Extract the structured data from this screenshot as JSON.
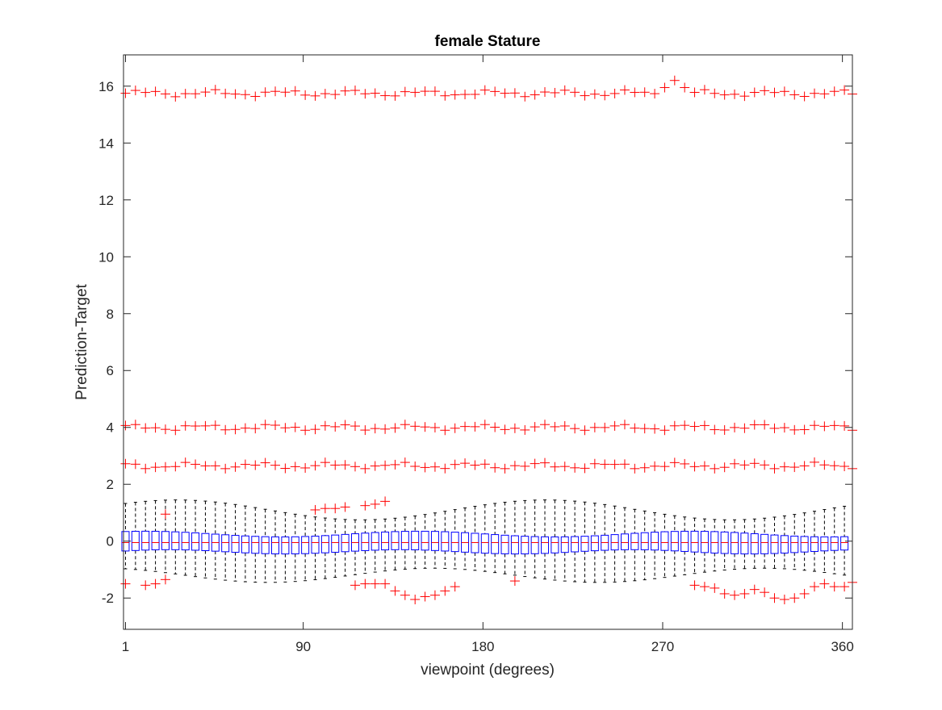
{
  "chart_data": {
    "type": "box",
    "title": "female Stature",
    "xlabel": "viewpoint (degrees)",
    "ylabel": "Prediction-Target",
    "xlim": [
      0,
      365
    ],
    "ylim": [
      -3.1,
      17.1
    ],
    "xticks": [
      1,
      90,
      180,
      270,
      360
    ],
    "yticks": [
      -2,
      0,
      2,
      4,
      6,
      8,
      10,
      12,
      14,
      16
    ],
    "grid": false,
    "viewpoint_step_degrees": 5,
    "viewpoint_count": 73,
    "box_color": "#0000FF",
    "median_color": "#FF0000",
    "whisker_color": "#000000",
    "outlier_color": "#FF0000",
    "box_stats_approx": {
      "median": -0.05,
      "q1_range": [
        -0.45,
        -0.3
      ],
      "q3_range": [
        0.15,
        0.35
      ],
      "lower_whisker_range": [
        -1.45,
        -0.95
      ],
      "upper_whisker_range": [
        0.75,
        1.45
      ]
    },
    "outlier_bands": [
      {
        "name": "",
        "values_approx": [
          15.75,
          15.55,
          16.2
        ]
      },
      {
        "name": "",
        "values_approx": [
          4.0,
          3.9,
          4.1
        ]
      },
      {
        "name": "",
        "values_approx": [
          2.65,
          2.55,
          2.8
        ]
      }
    ],
    "upper_low_outliers": [
      {
        "x": 21,
        "y": 0.95
      },
      {
        "x": 96,
        "y": 1.1
      },
      {
        "x": 101,
        "y": 1.15
      },
      {
        "x": 106,
        "y": 1.15
      },
      {
        "x": 111,
        "y": 1.2
      },
      {
        "x": 121,
        "y": 1.25
      },
      {
        "x": 126,
        "y": 1.3
      },
      {
        "x": 131,
        "y": 1.4
      }
    ],
    "lower_outliers": [
      {
        "x": 1,
        "y": -1.5
      },
      {
        "x": 11,
        "y": -1.55
      },
      {
        "x": 16,
        "y": -1.5
      },
      {
        "x": 21,
        "y": -1.35
      },
      {
        "x": 116,
        "y": -1.55
      },
      {
        "x": 121,
        "y": -1.5
      },
      {
        "x": 126,
        "y": -1.5
      },
      {
        "x": 131,
        "y": -1.5
      },
      {
        "x": 136,
        "y": -1.75
      },
      {
        "x": 141,
        "y": -1.9
      },
      {
        "x": 146,
        "y": -2.05
      },
      {
        "x": 151,
        "y": -1.95
      },
      {
        "x": 156,
        "y": -1.9
      },
      {
        "x": 161,
        "y": -1.75
      },
      {
        "x": 166,
        "y": -1.6
      },
      {
        "x": 196,
        "y": -1.4
      },
      {
        "x": 286,
        "y": -1.55
      },
      {
        "x": 291,
        "y": -1.6
      },
      {
        "x": 296,
        "y": -1.65
      },
      {
        "x": 301,
        "y": -1.85
      },
      {
        "x": 306,
        "y": -1.9
      },
      {
        "x": 311,
        "y": -1.85
      },
      {
        "x": 316,
        "y": -1.7
      },
      {
        "x": 321,
        "y": -1.8
      },
      {
        "x": 326,
        "y": -2.0
      },
      {
        "x": 331,
        "y": -2.05
      },
      {
        "x": 336,
        "y": -2.0
      },
      {
        "x": 341,
        "y": -1.85
      },
      {
        "x": 346,
        "y": -1.6
      },
      {
        "x": 351,
        "y": -1.5
      },
      {
        "x": 356,
        "y": -1.6
      },
      {
        "x": 361,
        "y": -1.6
      },
      {
        "x": 365,
        "y": -1.45
      }
    ]
  }
}
